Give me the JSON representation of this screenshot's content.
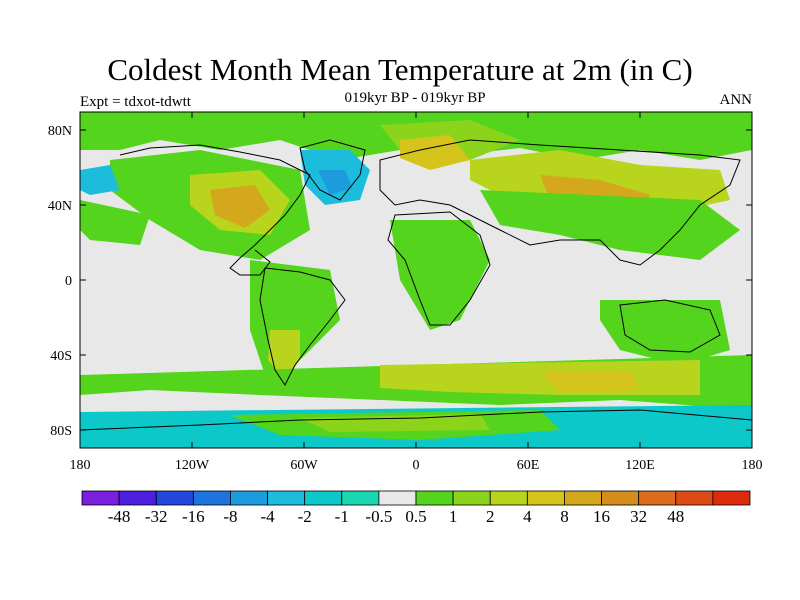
{
  "title": "Coldest Month Mean Temperature at 2m (in C)",
  "subtitle": "019kyr BP - 019kyr BP",
  "left_label": "Expt = tdxot-tdwtt",
  "right_label": "ANN",
  "lat_ticks": [
    "80N",
    "40N",
    "0",
    "40S",
    "80S"
  ],
  "lon_ticks": [
    "180",
    "120W",
    "60W",
    "0",
    "60E",
    "120E",
    "180"
  ],
  "colorbar": {
    "colors": [
      "#7a1fdd",
      "#4e1ee0",
      "#2448dc",
      "#1c74dc",
      "#1c9cdc",
      "#1cbcdc",
      "#0cc8c8",
      "#1cd8b0",
      "#e8e8e8",
      "#54d41c",
      "#8cd41c",
      "#b8d41c",
      "#d4c41c",
      "#d4a81c",
      "#d48c1c",
      "#dc6c1c",
      "#dc4c14",
      "#dc2c0c"
    ],
    "labels": [
      "-48",
      "-32",
      "-16",
      "-8",
      "-4",
      "-2",
      "-1",
      "-0.5",
      "0.5",
      "1",
      "2",
      "4",
      "8",
      "16",
      "32",
      "48"
    ]
  },
  "colors": {
    "missing": "#e8e8e8",
    "green": "#54d41c",
    "lightgreen": "#8cd41c",
    "yellowgreen": "#b8d41c",
    "yellow": "#d4c41c",
    "orange": "#d4a81c",
    "cyan": "#1cbcdc",
    "teal": "#0cc8c8",
    "blue": "#1c9cdc"
  }
}
